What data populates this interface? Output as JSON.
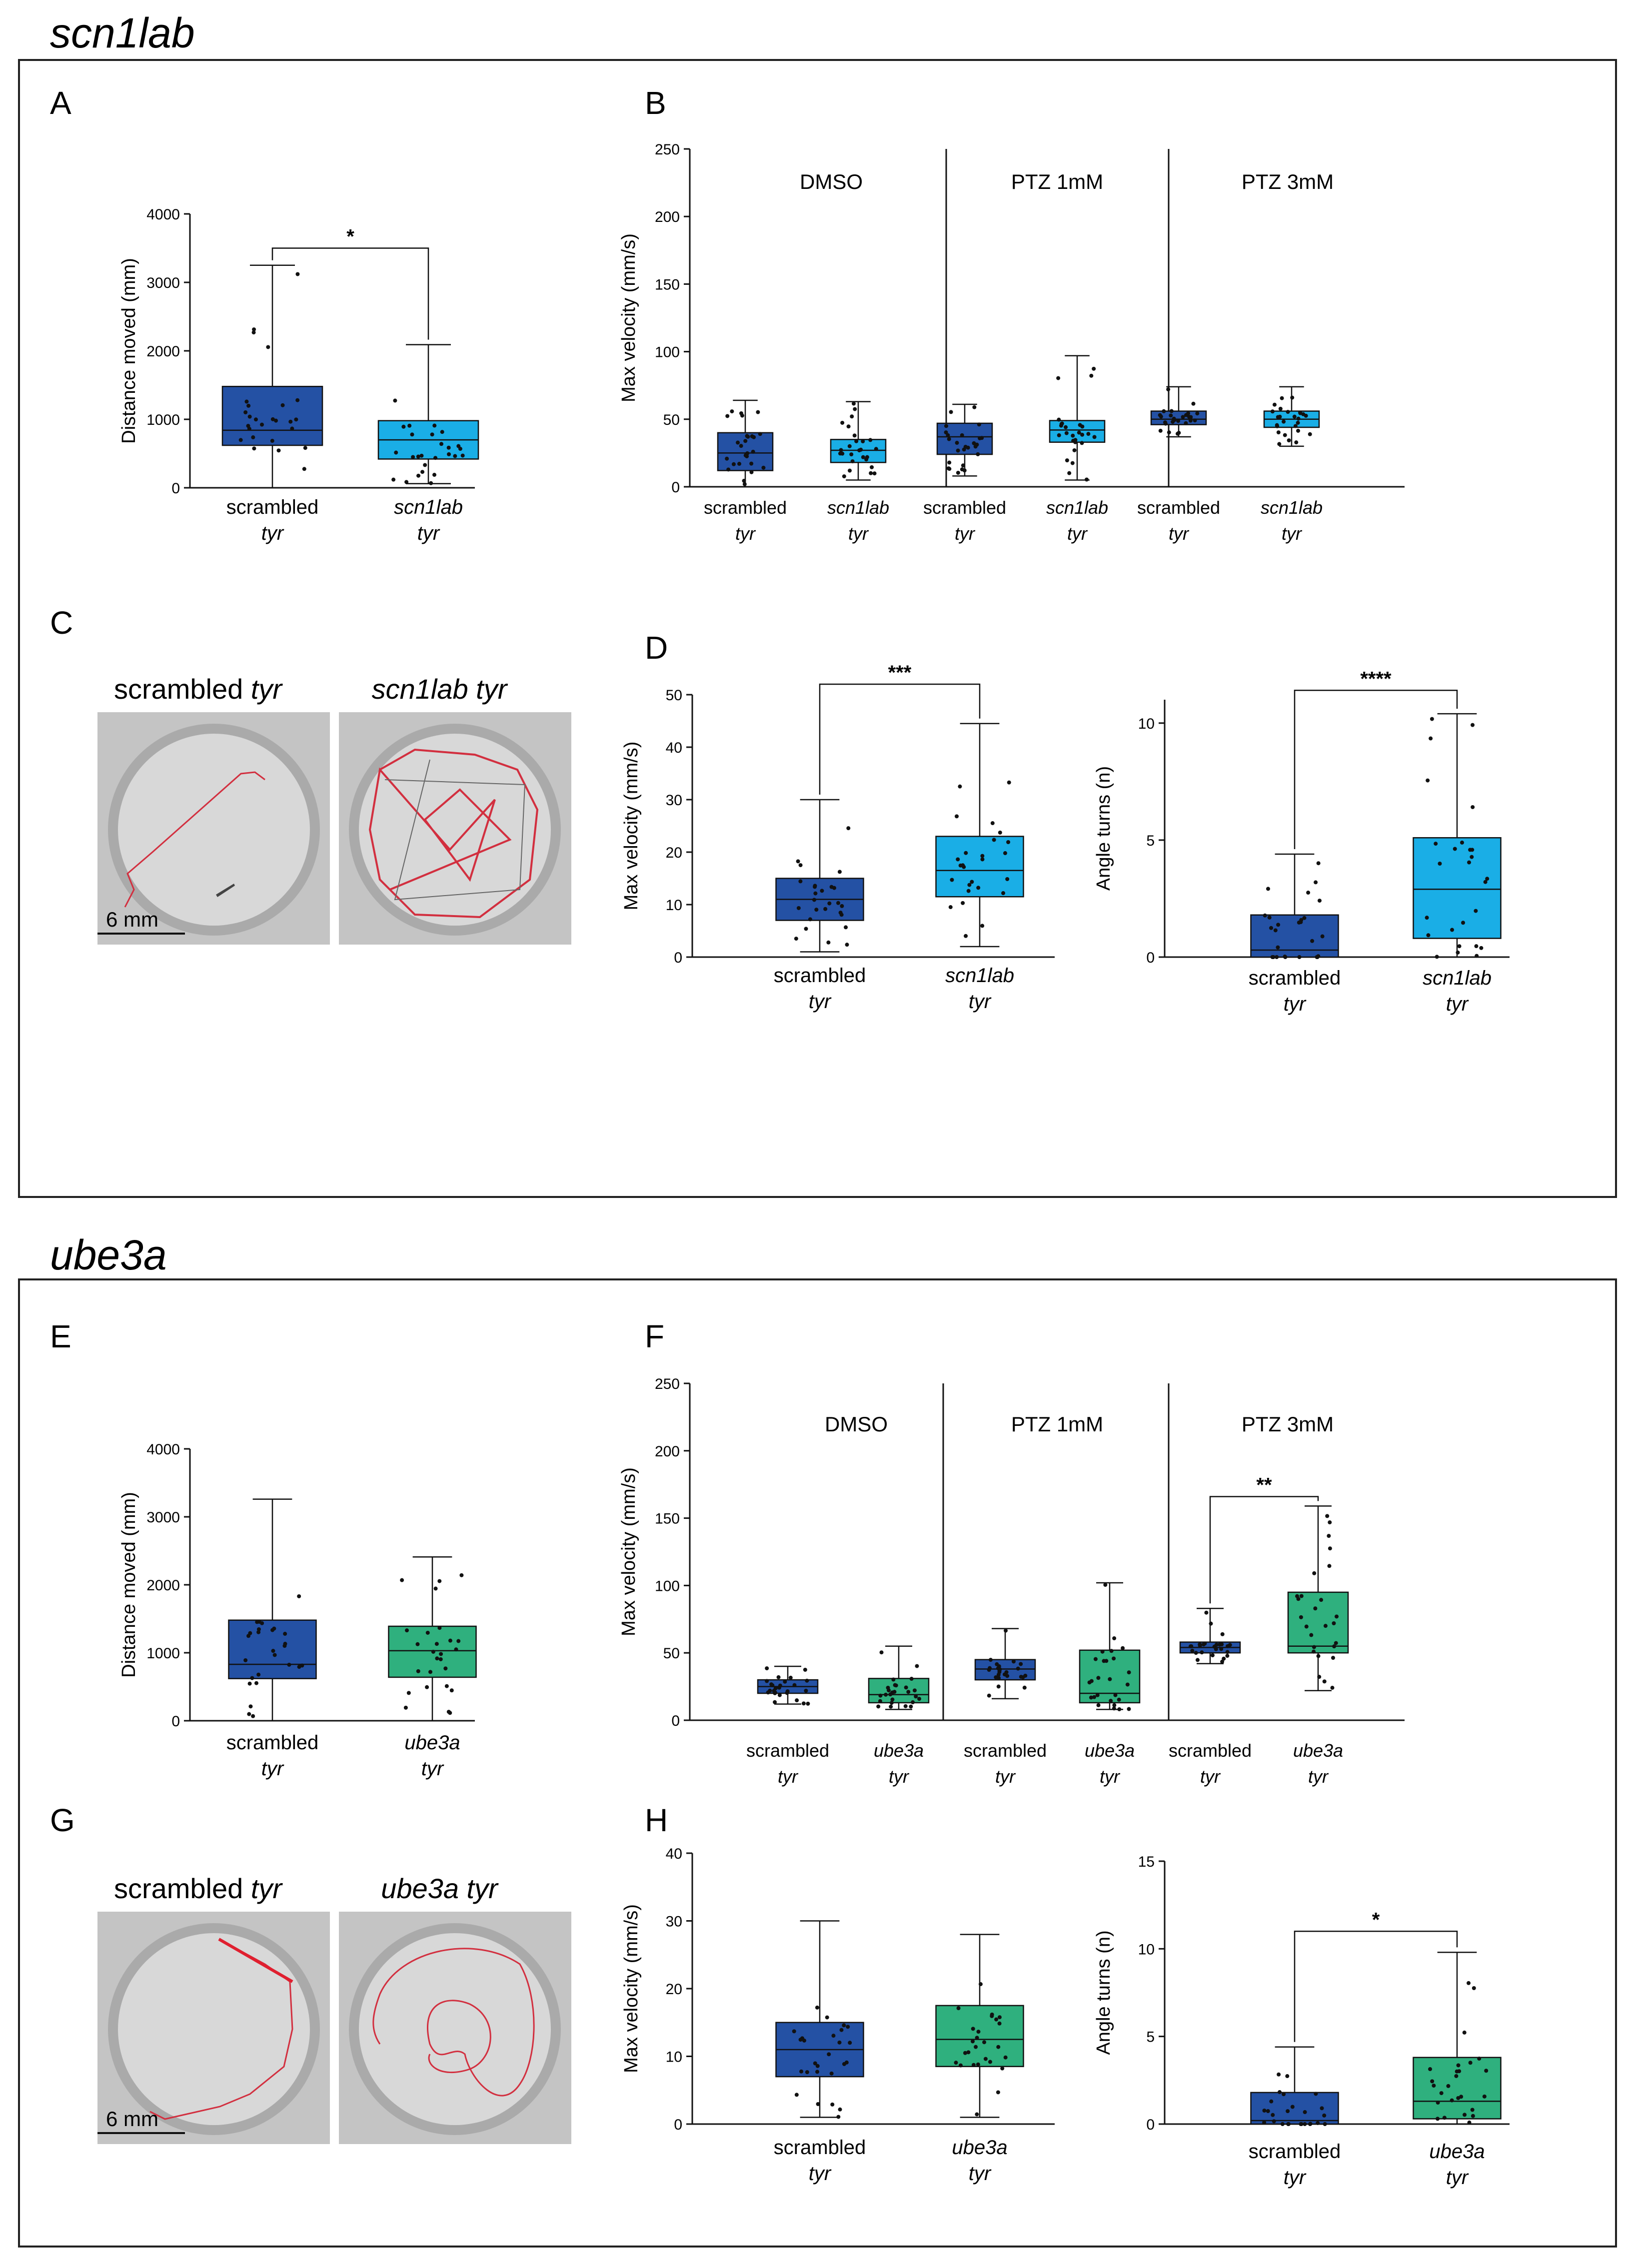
{
  "sections": [
    {
      "title": "scn1lab"
    },
    {
      "title": "ube3a"
    }
  ],
  "colors": {
    "scrambled": "#2451a4",
    "scn1lab": "#1aaee6",
    "ube3a": "#2fb07e",
    "trace": "#d22f3f",
    "frame": "#222222"
  },
  "images": {
    "C": {
      "left": {
        "label": "scrambled",
        "gene": "tyr"
      },
      "right": {
        "label": "scn1lab tyr"
      },
      "scale": "6 mm"
    },
    "G": {
      "left": {
        "label": "scrambled",
        "gene": "tyr"
      },
      "right": {
        "label": "ube3a tyr"
      },
      "scale": "6 mm"
    }
  },
  "chart_data": [
    {
      "panel": "A",
      "type": "box",
      "ylabel": "Distance moved (mm)",
      "ylim": [
        0,
        4000
      ],
      "yticks": [
        0,
        1000,
        2000,
        3000,
        4000
      ],
      "categories": [
        [
          "scrambled",
          "tyr"
        ],
        [
          "scn1lab",
          "tyr"
        ]
      ],
      "boxes": [
        {
          "color": "scrambled",
          "min": 0,
          "q1": 620,
          "median": 840,
          "q3": 1480,
          "max": 3250
        },
        {
          "color": "scn1lab",
          "min": 60,
          "q1": 420,
          "median": 700,
          "q3": 980,
          "max": 2090
        }
      ],
      "sig": [
        {
          "from": 0,
          "to": 1,
          "label": "*",
          "y": 3500
        }
      ]
    },
    {
      "panel": "B",
      "type": "box",
      "ylabel": "Max velocity (mm/s)",
      "ylim": [
        0,
        250
      ],
      "yticks": [
        0,
        50,
        100,
        150,
        200,
        250
      ],
      "groups": [
        "DMSO",
        "PTZ 1mM",
        "PTZ 3mM"
      ],
      "categories": [
        [
          "scrambled",
          "tyr"
        ],
        [
          "scn1lab",
          "tyr"
        ],
        [
          "scrambled",
          "tyr"
        ],
        [
          "scn1lab",
          "tyr"
        ],
        [
          "scrambled",
          "tyr"
        ],
        [
          "scn1lab",
          "tyr"
        ]
      ],
      "boxes": [
        {
          "color": "scrambled",
          "min": 0,
          "q1": 12,
          "median": 25,
          "q3": 40,
          "max": 64
        },
        {
          "color": "scn1lab",
          "min": 5,
          "q1": 18,
          "median": 27,
          "q3": 35,
          "max": 63
        },
        {
          "color": "scrambled",
          "min": 8,
          "q1": 24,
          "median": 37,
          "q3": 47,
          "max": 61
        },
        {
          "color": "scn1lab",
          "min": 5,
          "q1": 33,
          "median": 42,
          "q3": 49,
          "max": 97
        },
        {
          "color": "scrambled",
          "min": 37,
          "q1": 46,
          "median": 50,
          "q3": 56,
          "max": 74
        },
        {
          "color": "scn1lab",
          "min": 30,
          "q1": 44,
          "median": 50,
          "q3": 56,
          "max": 74
        }
      ],
      "sig": []
    },
    {
      "panel": "D1",
      "type": "box",
      "ylabel": "Max velocity (mm/s)",
      "ylim": [
        0,
        50
      ],
      "yticks": [
        0,
        10,
        20,
        30,
        40,
        50
      ],
      "categories": [
        [
          "scrambled",
          "tyr"
        ],
        [
          "scn1lab",
          "tyr"
        ]
      ],
      "boxes": [
        {
          "color": "scrambled",
          "min": 1,
          "q1": 7,
          "median": 11,
          "q3": 15,
          "max": 30
        },
        {
          "color": "scn1lab",
          "min": 2,
          "q1": 11.5,
          "median": 16.5,
          "q3": 23,
          "max": 44.5
        }
      ],
      "sig": [
        {
          "from": 0,
          "to": 1,
          "label": "***",
          "y": 52
        }
      ]
    },
    {
      "panel": "D2",
      "type": "box",
      "ylabel": "Angle turns (n)",
      "ylim": [
        0,
        11
      ],
      "yticks": [
        0,
        5,
        10
      ],
      "categories": [
        [
          "scrambled",
          "tyr"
        ],
        [
          "scn1lab",
          "tyr"
        ]
      ],
      "boxes": [
        {
          "color": "scrambled",
          "min": 0,
          "q1": 0,
          "median": 0.3,
          "q3": 1.8,
          "max": 4.4
        },
        {
          "color": "scn1lab",
          "min": 0,
          "q1": 0.8,
          "median": 2.9,
          "q3": 5.1,
          "max": 10.4
        }
      ],
      "sig": [
        {
          "from": 0,
          "to": 1,
          "label": "****",
          "y": 11.4
        }
      ]
    },
    {
      "panel": "E",
      "type": "box",
      "ylabel": "Distance moved (mm)",
      "ylim": [
        0,
        4000
      ],
      "yticks": [
        0,
        1000,
        2000,
        3000,
        4000
      ],
      "categories": [
        [
          "scrambled",
          "tyr"
        ],
        [
          "ube3a",
          "tyr"
        ]
      ],
      "boxes": [
        {
          "color": "scrambled",
          "min": 0,
          "q1": 620,
          "median": 830,
          "q3": 1480,
          "max": 3260
        },
        {
          "color": "ube3a",
          "min": 0,
          "q1": 640,
          "median": 1030,
          "q3": 1390,
          "max": 2410
        }
      ],
      "sig": []
    },
    {
      "panel": "F",
      "type": "box",
      "ylabel": "Max velocity (mm/s)",
      "ylim": [
        0,
        250
      ],
      "yticks": [
        0,
        50,
        100,
        150,
        200,
        250
      ],
      "groups": [
        "DMSO",
        "PTZ 1mM",
        "PTZ 3mM"
      ],
      "categories": [
        [
          "scrambled",
          "tyr"
        ],
        [
          "ube3a",
          "tyr"
        ],
        [
          "scrambled",
          "tyr"
        ],
        [
          "ube3a",
          "tyr"
        ],
        [
          "scrambled",
          "tyr"
        ],
        [
          "ube3a",
          "tyr"
        ]
      ],
      "boxes": [
        {
          "color": "scrambled",
          "min": 12,
          "q1": 20,
          "median": 25,
          "q3": 30,
          "max": 40
        },
        {
          "color": "ube3a",
          "min": 8,
          "q1": 13,
          "median": 19,
          "q3": 31,
          "max": 55
        },
        {
          "color": "scrambled",
          "min": 16,
          "q1": 30,
          "median": 38,
          "q3": 45,
          "max": 68
        },
        {
          "color": "ube3a",
          "min": 8,
          "q1": 13,
          "median": 20,
          "q3": 52,
          "max": 102
        },
        {
          "color": "scrambled",
          "min": 42,
          "q1": 50,
          "median": 54,
          "q3": 58,
          "max": 83
        },
        {
          "color": "ube3a",
          "min": 22,
          "q1": 50,
          "median": 55,
          "q3": 95,
          "max": 159
        }
      ],
      "sig": [
        {
          "from": 4,
          "to": 5,
          "label": "**",
          "y": 166
        }
      ]
    },
    {
      "panel": "H1",
      "type": "box",
      "ylabel": "Max velocity (mm/s)",
      "ylim": [
        0,
        40
      ],
      "yticks": [
        0,
        10,
        20,
        30,
        40
      ],
      "categories": [
        [
          "scrambled",
          "tyr"
        ],
        [
          "ube3a",
          "tyr"
        ]
      ],
      "boxes": [
        {
          "color": "scrambled",
          "min": 1,
          "q1": 7,
          "median": 11,
          "q3": 15,
          "max": 30
        },
        {
          "color": "ube3a",
          "min": 1,
          "q1": 8.5,
          "median": 12.5,
          "q3": 17.5,
          "max": 28
        }
      ],
      "sig": []
    },
    {
      "panel": "H2",
      "type": "box",
      "ylabel": "Angle turns (n)",
      "ylim": [
        0,
        15
      ],
      "yticks": [
        0,
        5,
        10,
        15
      ],
      "categories": [
        [
          "scrambled",
          "tyr"
        ],
        [
          "ube3a",
          "tyr"
        ]
      ],
      "boxes": [
        {
          "color": "scrambled",
          "min": 0,
          "q1": 0,
          "median": 0.2,
          "q3": 1.8,
          "max": 4.4
        },
        {
          "color": "ube3a",
          "min": 0,
          "q1": 0.3,
          "median": 1.3,
          "q3": 3.8,
          "max": 9.8
        }
      ],
      "sig": [
        {
          "from": 0,
          "to": 1,
          "label": "*",
          "y": 11
        }
      ]
    }
  ]
}
